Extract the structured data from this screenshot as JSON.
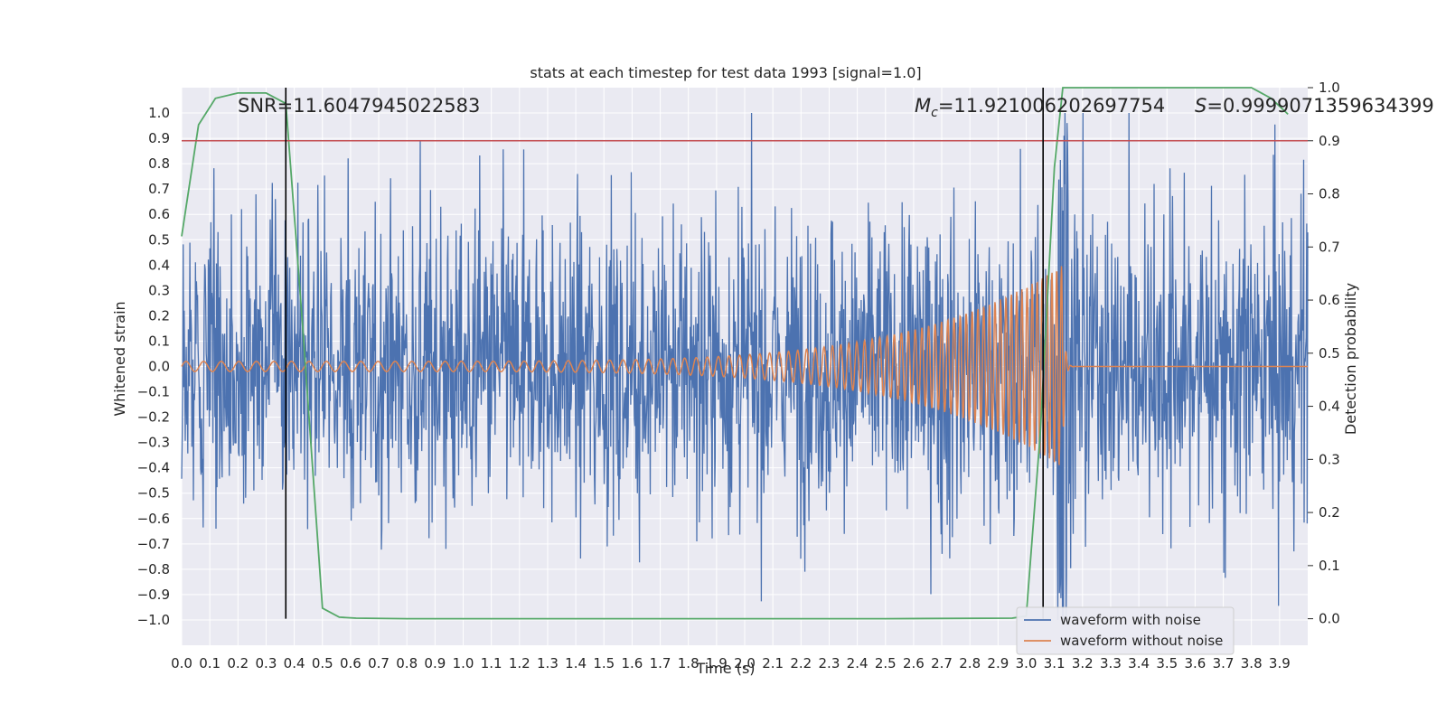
{
  "chart_data": {
    "type": "line",
    "title": "stats at each timestep for test data 1993 [signal=1.0]",
    "xlabel": "Time (s)",
    "ylabel_left": "Whitened strain",
    "ylabel_right": "Detection probability",
    "xlim": [
      0.0,
      4.0
    ],
    "ylim_left": [
      -1.1,
      1.1
    ],
    "ylim_right": [
      -0.05,
      1.0
    ],
    "xticks": [
      "0.0",
      "0.1",
      "0.2",
      "0.3",
      "0.4",
      "0.5",
      "0.6",
      "0.7",
      "0.8",
      "0.9",
      "1.0",
      "1.1",
      "1.2",
      "1.3",
      "1.4",
      "1.5",
      "1.6",
      "1.7",
      "1.8",
      "1.9",
      "2.0",
      "2.1",
      "2.2",
      "2.3",
      "2.4",
      "2.5",
      "2.6",
      "2.7",
      "2.8",
      "2.9",
      "3.0",
      "3.1",
      "3.2",
      "3.3",
      "3.4",
      "3.5",
      "3.6",
      "3.7",
      "3.8",
      "3.9"
    ],
    "yticks_left": [
      "1.0",
      "0.9",
      "0.8",
      "0.7",
      "0.6",
      "0.5",
      "0.4",
      "0.3",
      "0.2",
      "0.1",
      "0.0",
      "−0.1",
      "−0.2",
      "−0.3",
      "−0.4",
      "−0.5",
      "−0.6",
      "−0.7",
      "−0.8",
      "−0.9",
      "−1.0"
    ],
    "yticks_right": [
      "1.0",
      "0.9",
      "0.8",
      "0.7",
      "0.6",
      "0.5",
      "0.4",
      "0.3",
      "0.2",
      "0.1",
      "0.0"
    ],
    "grid": true,
    "threshold": 0.9,
    "vlines": [
      0.37,
      3.06
    ],
    "annotations": {
      "snr": "SNR=11.6047945022583",
      "mc_symbol": "M",
      "mc_sub": "c",
      "mc_value": "=11.921006202697754",
      "s_symbol": "S",
      "s_value": "=0.9999071359634399"
    },
    "series": [
      {
        "name": "waveform with noise",
        "axis": "left",
        "color": "#4c72b0",
        "amplitude_peak": 1.0,
        "amplitude_min": -1.0
      },
      {
        "name": "waveform without noise",
        "axis": "left",
        "color": "#dd8452",
        "chirp": {
          "start": 0.0,
          "merger": 3.13,
          "amp_start": 0.02,
          "amp_peak": 0.4,
          "cycles_per_s_start": 16,
          "cycles_per_s_end": 60
        }
      },
      {
        "name": "detection probability",
        "axis": "right",
        "color": "#55a868",
        "x": [
          0.0,
          0.06,
          0.12,
          0.2,
          0.3,
          0.37,
          0.43,
          0.5,
          0.56,
          0.62,
          0.8,
          1.5,
          2.5,
          2.95,
          3.0,
          3.05,
          3.1,
          3.13,
          3.2,
          3.8,
          3.87,
          3.93
        ],
        "values": [
          0.72,
          0.93,
          0.98,
          0.99,
          0.99,
          0.97,
          0.55,
          0.02,
          0.003,
          0.001,
          0.0,
          0.0,
          0.0,
          0.001,
          0.005,
          0.35,
          0.85,
          1.0,
          1.0,
          1.0,
          0.98,
          0.95
        ]
      }
    ],
    "legend": {
      "position": "lower-right",
      "entries": [
        "waveform with noise",
        "waveform without noise"
      ]
    },
    "colors": {
      "background": "#eaeaf2",
      "grid": "#ffffff",
      "threshold": "#c44e52",
      "vline": "#000000"
    }
  }
}
